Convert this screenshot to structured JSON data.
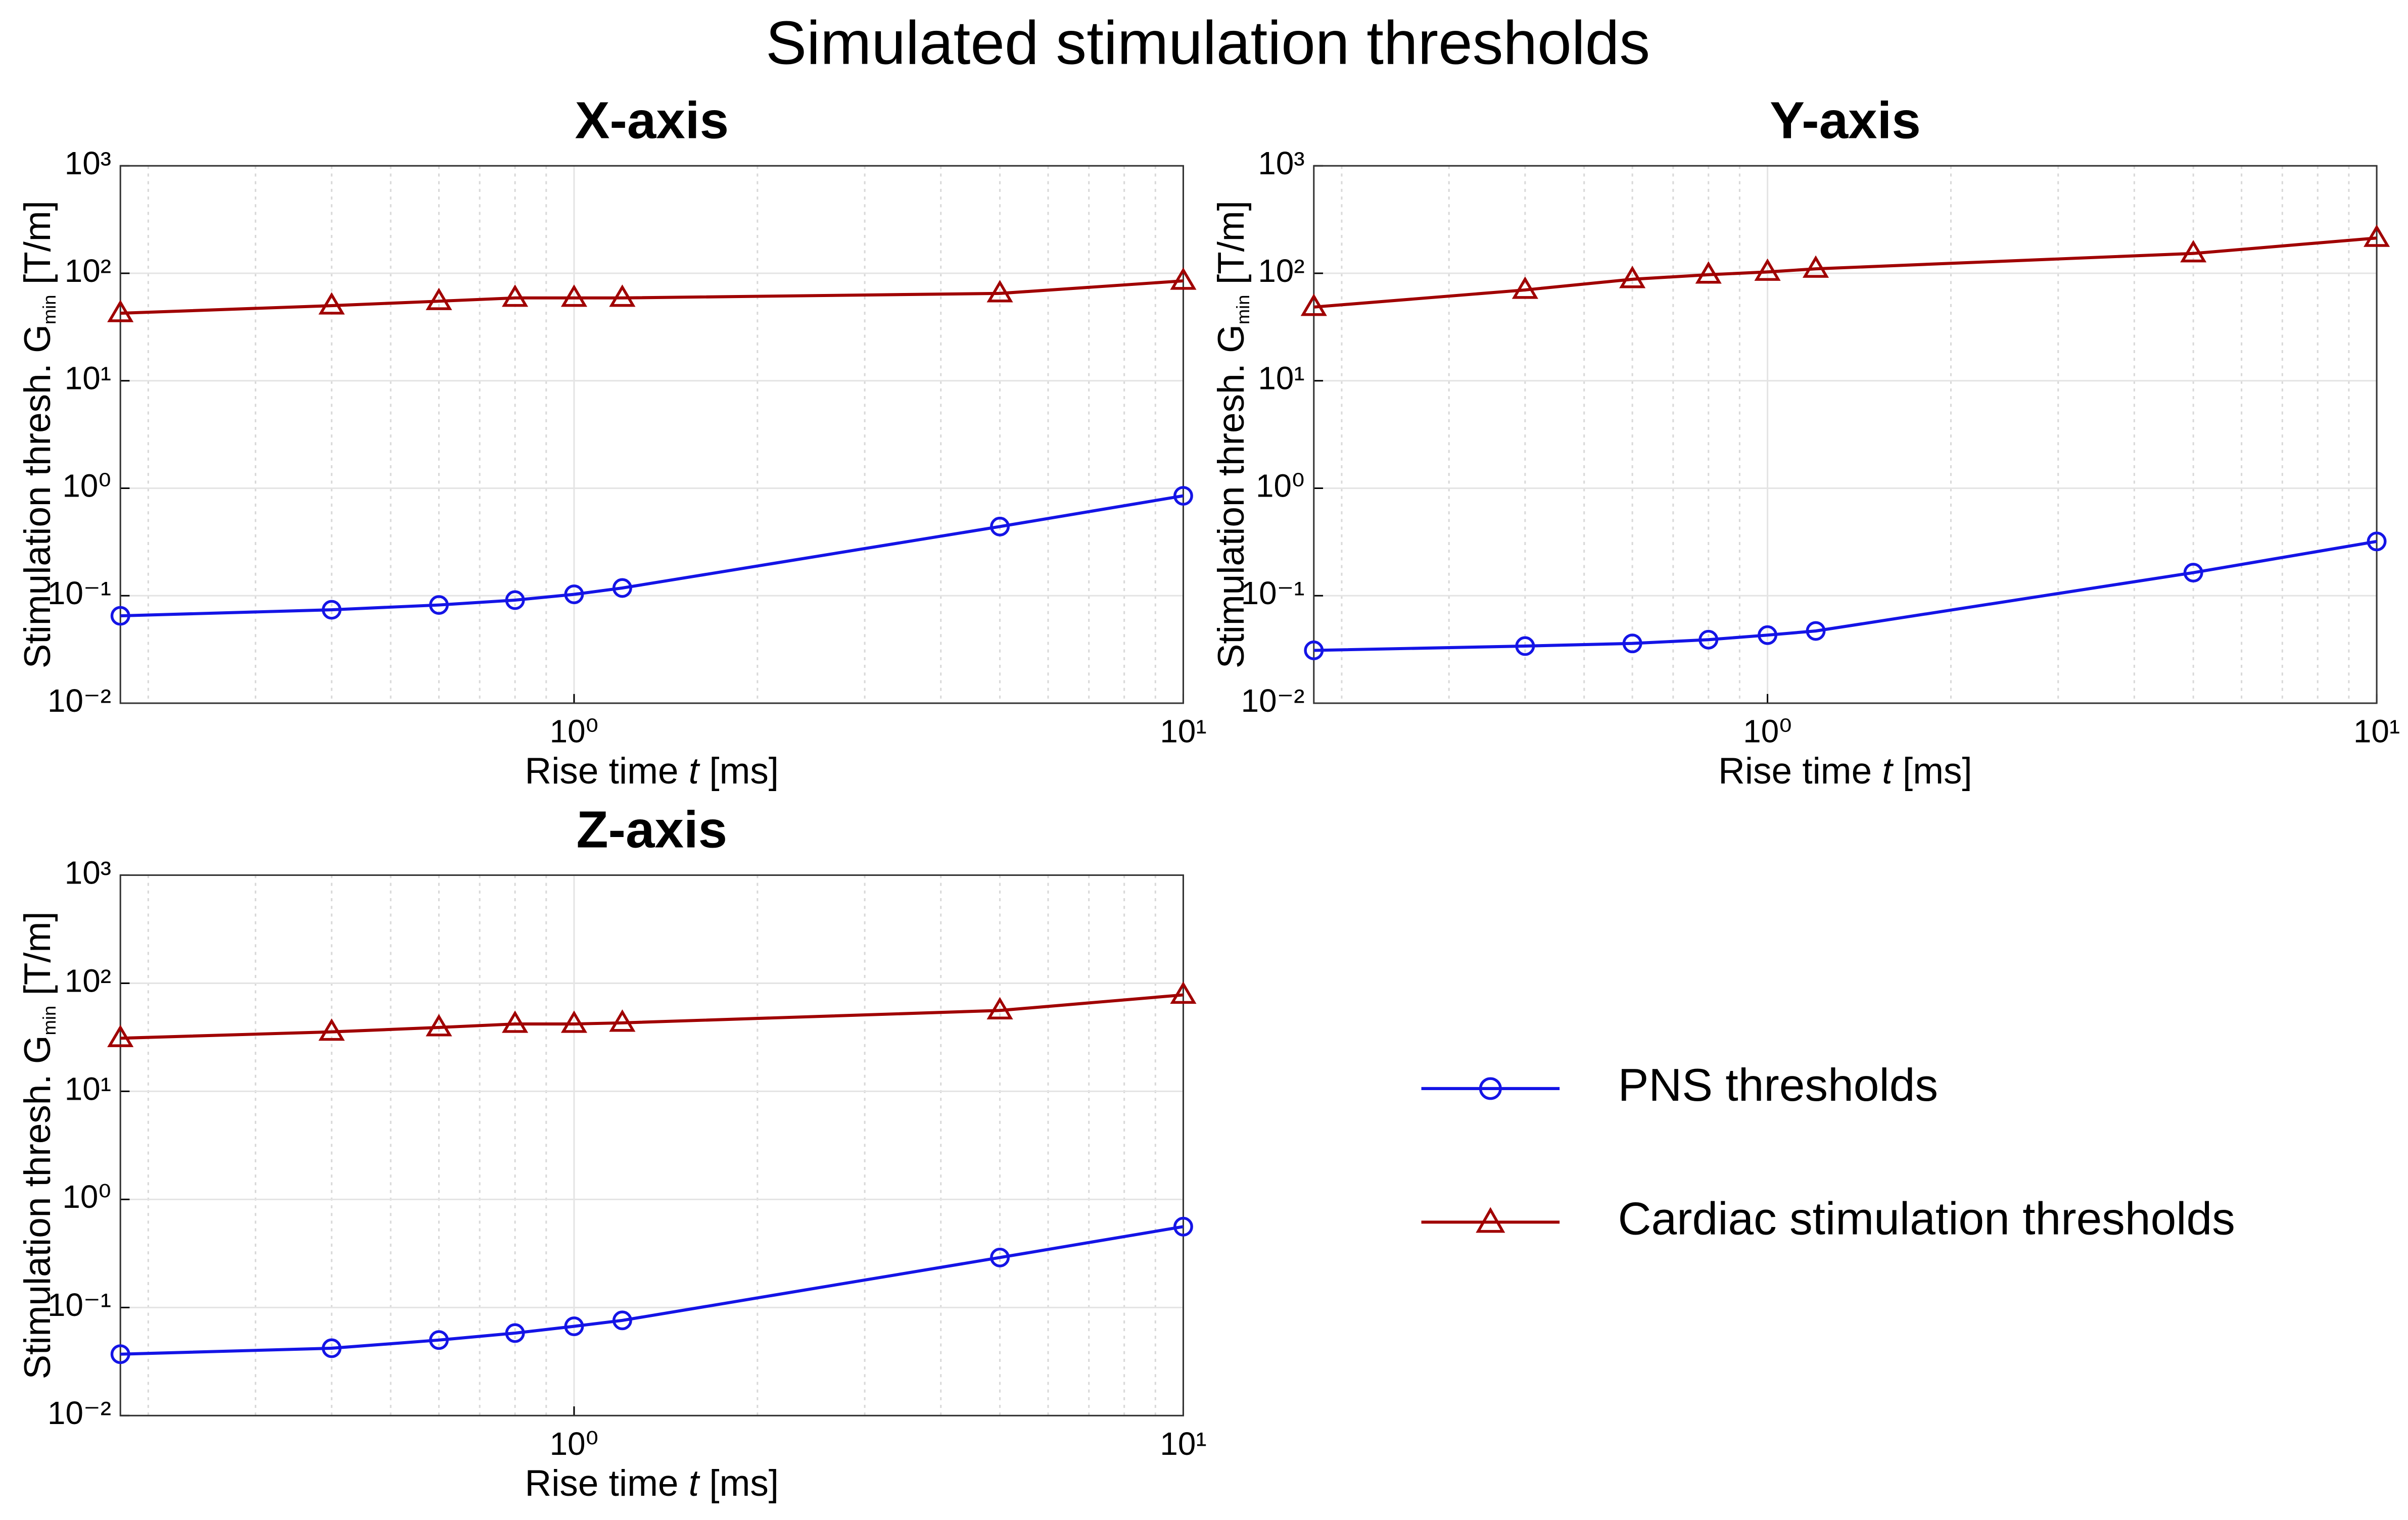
{
  "title": "Simulated stimulation thresholds",
  "chart_data": [
    {
      "type": "line",
      "title": "X-axis",
      "xlabel": [
        "Rise time ",
        "t",
        " [ms]"
      ],
      "ylabel": [
        "Stimulation thresh. G",
        "min",
        " [T/m]"
      ],
      "xscale": "log",
      "yscale": "log",
      "grid": true,
      "x": [
        0.18,
        0.4,
        0.6,
        0.8,
        1,
        1.2,
        5,
        10
      ],
      "xlim": [
        0.18,
        10
      ],
      "xticks": [
        {
          "value": 1,
          "label": "10⁰"
        },
        {
          "value": 10,
          "label": "10¹"
        }
      ],
      "ylim": [
        0.01,
        1000
      ],
      "yticks": [
        {
          "value": 0.01,
          "label": "10⁻²"
        },
        {
          "value": 0.1,
          "label": "10⁻¹"
        },
        {
          "value": 1,
          "label": "10⁰"
        },
        {
          "value": 10,
          "label": "10¹"
        },
        {
          "value": 100,
          "label": "10²"
        },
        {
          "value": 1000,
          "label": "10³"
        }
      ],
      "series": [
        {
          "name": "PNS thresholds",
          "color": "#1414e6",
          "marker": "circle",
          "values": [
            0.065,
            0.074,
            0.082,
            0.091,
            0.103,
            0.118,
            0.44,
            0.85
          ]
        },
        {
          "name": "Cardiac stimulation thresholds",
          "color": "#a00000",
          "marker": "triangle",
          "values": [
            42.5,
            50,
            55,
            59,
            59,
            59,
            65,
            85
          ]
        }
      ]
    },
    {
      "type": "line",
      "title": "Y-axis",
      "xlabel": [
        "Rise time ",
        "t",
        " [ms]"
      ],
      "ylabel": [
        "Stimulation thresh. G",
        "min",
        " [T/m]"
      ],
      "xscale": "log",
      "yscale": "log",
      "grid": true,
      "x": [
        0.18,
        0.4,
        0.6,
        0.8,
        1,
        1.2,
        5,
        10
      ],
      "xlim": [
        0.18,
        10
      ],
      "xticks": [
        {
          "value": 1,
          "label": "10⁰"
        },
        {
          "value": 10,
          "label": "10¹"
        }
      ],
      "ylim": [
        0.01,
        1000
      ],
      "yticks": [
        {
          "value": 0.01,
          "label": "10⁻²"
        },
        {
          "value": 0.1,
          "label": "10⁻¹"
        },
        {
          "value": 1,
          "label": "10⁰"
        },
        {
          "value": 10,
          "label": "10¹"
        },
        {
          "value": 100,
          "label": "10²"
        },
        {
          "value": 1000,
          "label": "10³"
        }
      ],
      "series": [
        {
          "name": "PNS thresholds",
          "color": "#1414e6",
          "marker": "circle",
          "values": [
            0.031,
            0.034,
            0.036,
            0.039,
            0.043,
            0.047,
            0.164,
            0.32
          ]
        },
        {
          "name": "Cardiac stimulation thresholds",
          "color": "#a00000",
          "marker": "triangle",
          "values": [
            48.5,
            70,
            88,
            97,
            103,
            110,
            153,
            213
          ]
        }
      ]
    },
    {
      "type": "line",
      "title": "Z-axis",
      "xlabel": [
        "Rise time ",
        "t",
        " [ms]"
      ],
      "ylabel": [
        "Stimulation thresh. G",
        "min",
        " [T/m]"
      ],
      "xscale": "log",
      "yscale": "log",
      "grid": true,
      "x": [
        0.18,
        0.4,
        0.6,
        0.8,
        1,
        1.2,
        5,
        10
      ],
      "xlim": [
        0.18,
        10
      ],
      "xticks": [
        {
          "value": 1,
          "label": "10⁰"
        },
        {
          "value": 10,
          "label": "10¹"
        }
      ],
      "ylim": [
        0.01,
        1000
      ],
      "yticks": [
        {
          "value": 0.01,
          "label": "10⁻²"
        },
        {
          "value": 0.1,
          "label": "10⁻¹"
        },
        {
          "value": 1,
          "label": "10⁰"
        },
        {
          "value": 10,
          "label": "10¹"
        },
        {
          "value": 100,
          "label": "10²"
        },
        {
          "value": 1000,
          "label": "10³"
        }
      ],
      "series": [
        {
          "name": "PNS thresholds",
          "color": "#1414e6",
          "marker": "circle",
          "values": [
            0.037,
            0.042,
            0.05,
            0.058,
            0.067,
            0.076,
            0.29,
            0.56
          ]
        },
        {
          "name": "Cardiac stimulation thresholds",
          "color": "#a00000",
          "marker": "triangle",
          "values": [
            31,
            35.5,
            39,
            42,
            42,
            43,
            56,
            78
          ]
        }
      ]
    }
  ]
}
